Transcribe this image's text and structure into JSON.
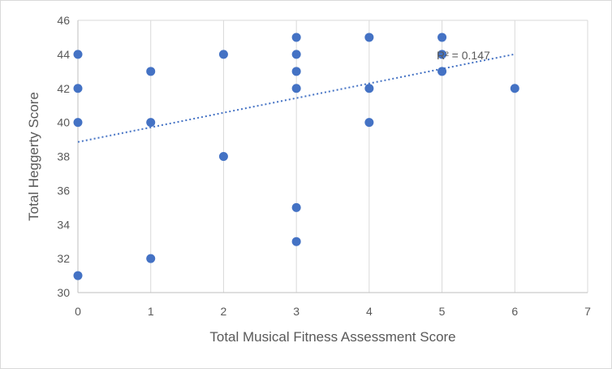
{
  "chart_data": {
    "type": "scatter",
    "title": "",
    "xlabel": "Total Musical Fitness Assessment Score",
    "ylabel": "Total Heggerty Score",
    "xlim": [
      0,
      7
    ],
    "ylim": [
      30,
      46
    ],
    "x_ticks": [
      0,
      1,
      2,
      3,
      4,
      5,
      6,
      7
    ],
    "y_ticks": [
      30,
      32,
      34,
      36,
      38,
      40,
      42,
      44,
      46
    ],
    "grid": "vertical major gridlines",
    "legend": "none",
    "series": [
      {
        "color": "#4472c4",
        "points": [
          {
            "x": 0,
            "y": 44
          },
          {
            "x": 0,
            "y": 42
          },
          {
            "x": 0,
            "y": 40
          },
          {
            "x": 0,
            "y": 31
          },
          {
            "x": 1,
            "y": 43
          },
          {
            "x": 1,
            "y": 40
          },
          {
            "x": 1,
            "y": 32
          },
          {
            "x": 2,
            "y": 44
          },
          {
            "x": 2,
            "y": 38
          },
          {
            "x": 3,
            "y": 45
          },
          {
            "x": 3,
            "y": 44
          },
          {
            "x": 3,
            "y": 43
          },
          {
            "x": 3,
            "y": 42
          },
          {
            "x": 3,
            "y": 35
          },
          {
            "x": 3,
            "y": 33
          },
          {
            "x": 4,
            "y": 45
          },
          {
            "x": 4,
            "y": 42
          },
          {
            "x": 4,
            "y": 40
          },
          {
            "x": 5,
            "y": 45
          },
          {
            "x": 5,
            "y": 44
          },
          {
            "x": 5,
            "y": 43
          },
          {
            "x": 6,
            "y": 42
          }
        ]
      }
    ],
    "trendline": {
      "type": "linear",
      "style": "dotted",
      "color": "#4472c4",
      "x_range": [
        0,
        6
      ],
      "intercept": 38.85,
      "slope": 0.86,
      "label": "R² = 0.147"
    }
  }
}
